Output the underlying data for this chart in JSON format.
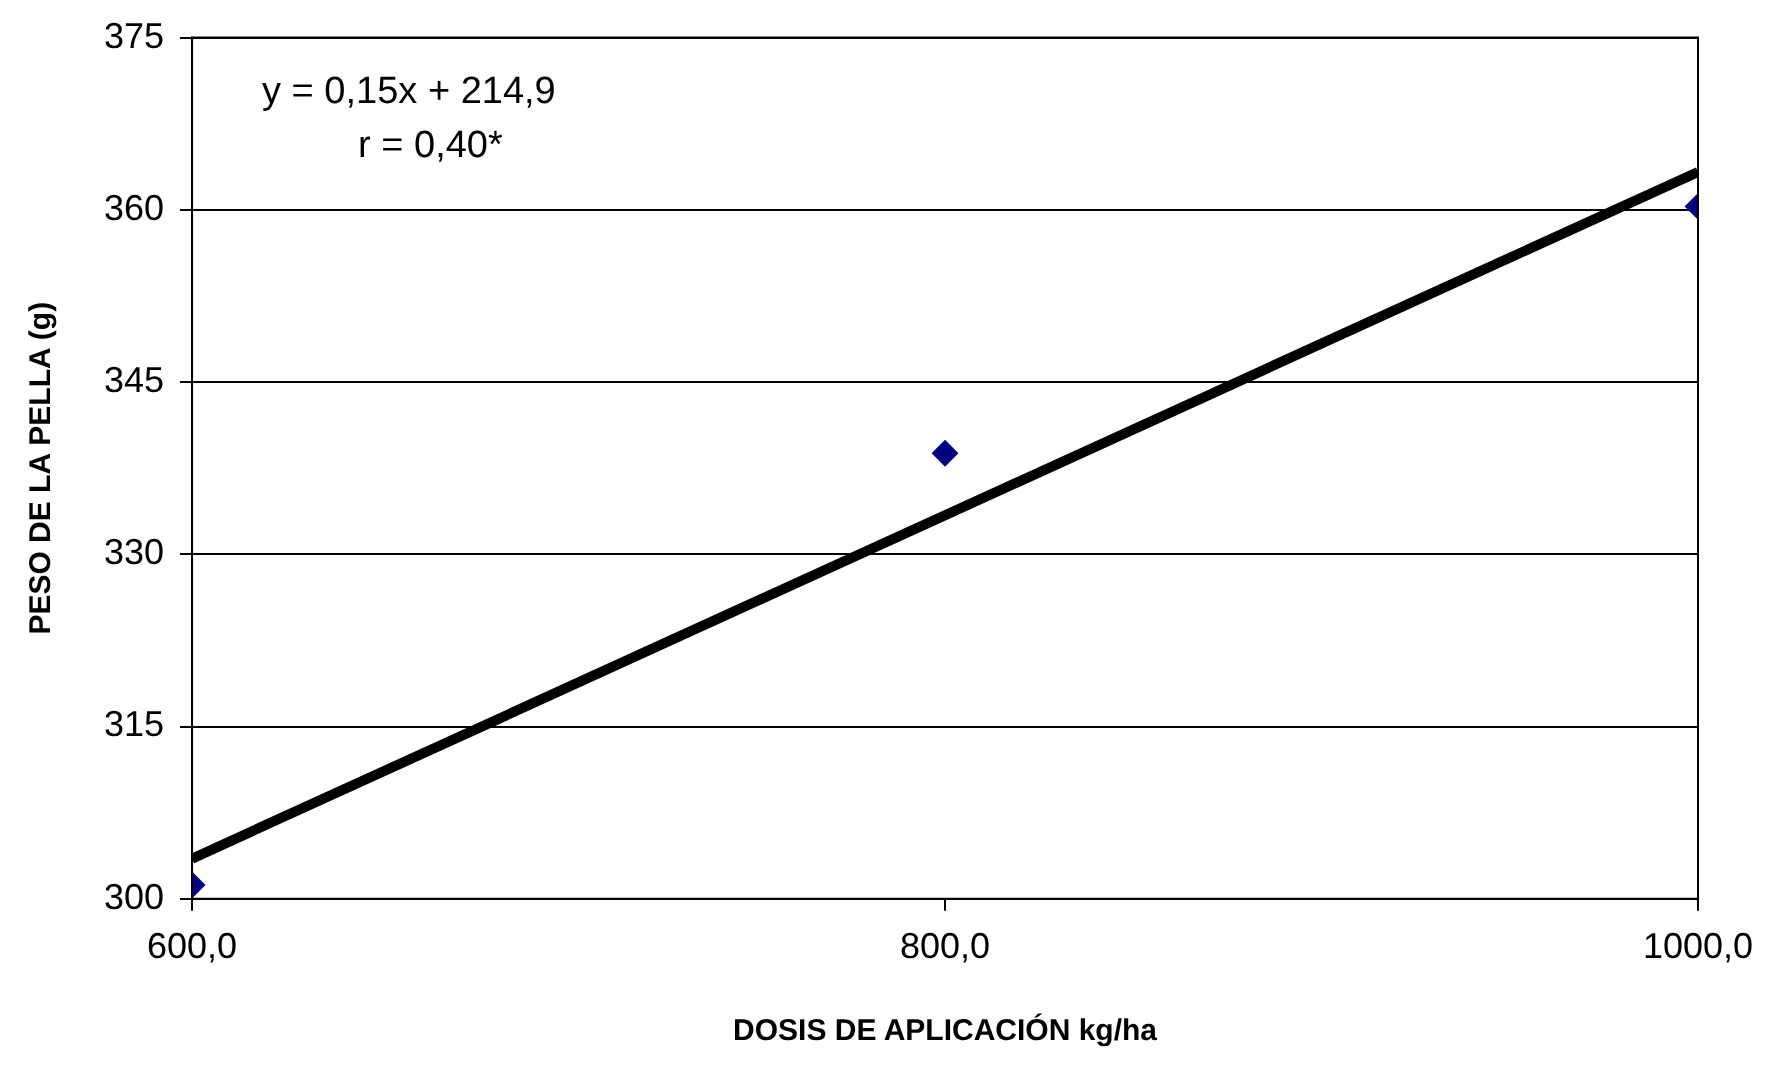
{
  "chart_data": {
    "type": "scatter",
    "xlabel": "DOSIS DE APLICACIÓN kg/ha",
    "ylabel": "PESO DE LA PELLA (g)",
    "annotations": [
      "y = 0,15x + 214,9",
      "r = 0,40*"
    ],
    "series": [
      {
        "color": "#000080",
        "marker": "diamond",
        "x": [
          600,
          800,
          1000
        ],
        "values": [
          301.2,
          338.8,
          360.3
        ]
      },
      {
        "type": "line",
        "color": "#000000",
        "marker": "none",
        "x": [
          600,
          1000
        ],
        "values": [
          303.5,
          363.3
        ]
      }
    ],
    "xlim": [
      600,
      1000
    ],
    "xticks": [
      {
        "value": 600,
        "label": "600,0"
      },
      {
        "value": 800,
        "label": "800,0"
      },
      {
        "value": 1000,
        "label": "1000,0"
      }
    ],
    "ylim": [
      300,
      375
    ],
    "yticks": [
      300,
      315,
      330,
      345,
      360,
      375
    ],
    "grid": "y",
    "legend": false
  }
}
